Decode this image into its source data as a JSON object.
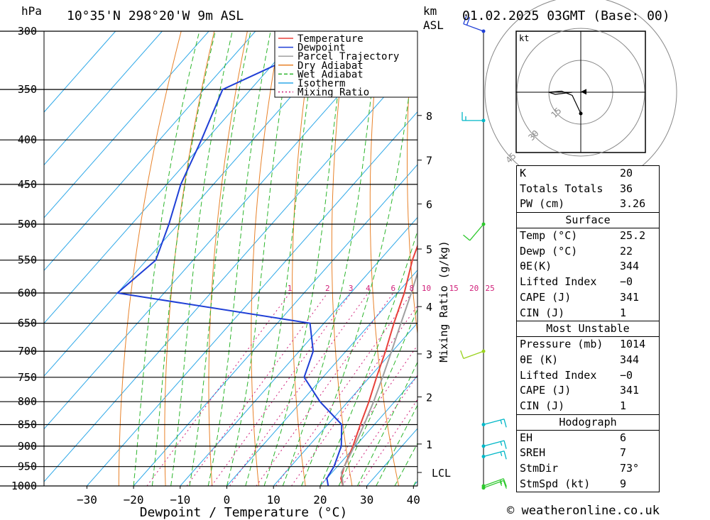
{
  "header": {
    "pressure_unit": "hPa",
    "location": "10°35'N  298°20'W  9m  ASL",
    "km_label": "km",
    "asl_label": "ASL",
    "datetime": "01.02.2025  03GMT  (Base: 00)"
  },
  "legend": {
    "items": [
      {
        "label": "Temperature",
        "color": "#e8413b",
        "style": "solid"
      },
      {
        "label": "Dewpoint",
        "color": "#1f3fd6",
        "style": "solid"
      },
      {
        "label": "Parcel Trajectory",
        "color": "#a0a0a0",
        "style": "solid"
      },
      {
        "label": "Dry Adiabat",
        "color": "#e8822a",
        "style": "solid"
      },
      {
        "label": "Wet Adiabat",
        "color": "#2cb52c",
        "style": "dashed"
      },
      {
        "label": "Isotherm",
        "color": "#2ea8e8",
        "style": "solid"
      },
      {
        "label": "Mixing Ratio",
        "color": "#d0207a",
        "style": "dotted"
      }
    ]
  },
  "chart_data": {
    "type": "line",
    "subtype": "skew-t log-p sounding",
    "xlabel": "Dewpoint / Temperature (°C)",
    "ylabel": "hPa",
    "mixing_ratio_axis_label": "Mixing Ratio (g/kg)",
    "pressure_levels": [
      300,
      350,
      400,
      450,
      500,
      550,
      600,
      650,
      700,
      750,
      800,
      850,
      900,
      950,
      1000
    ],
    "temperature_ticks": [
      -30,
      -20,
      -10,
      0,
      10,
      20,
      30,
      40
    ],
    "temperature_tick_labels": [
      "−30",
      "−20",
      "−10",
      "0",
      "10",
      "20",
      "30",
      "40"
    ],
    "mixing_ratio_values": [
      "1",
      "2",
      "3",
      "4",
      "6",
      "8",
      "10",
      "15",
      "20",
      "25"
    ],
    "mixing_ratio_label_pressure": 600,
    "altitude_km_ticks": [
      {
        "label": "8",
        "p": 375
      },
      {
        "label": "7",
        "p": 422
      },
      {
        "label": "6",
        "p": 474
      },
      {
        "label": "5",
        "p": 534
      },
      {
        "label": "4",
        "p": 622
      },
      {
        "label": "3",
        "p": 705
      },
      {
        "label": "2",
        "p": 790
      },
      {
        "label": "1",
        "p": 895
      },
      {
        "label": "LCL",
        "p": 965
      }
    ],
    "series": [
      {
        "name": "Temperature",
        "color": "#e8413b",
        "points": [
          [
            1003,
            25.2
          ],
          [
            980,
            23.0
          ],
          [
            950,
            21.5
          ],
          [
            900,
            19.5
          ],
          [
            850,
            17.0
          ],
          [
            800,
            14.5
          ],
          [
            750,
            11.5
          ],
          [
            700,
            8.5
          ],
          [
            650,
            5.0
          ],
          [
            600,
            1.5
          ],
          [
            550,
            -3.0
          ],
          [
            500,
            -7.0
          ],
          [
            450,
            -12.0
          ],
          [
            400,
            -17.5
          ],
          [
            350,
            -24.5
          ],
          [
            300,
            -33.5
          ]
        ]
      },
      {
        "name": "Dewpoint",
        "color": "#1f3fd6",
        "points": [
          [
            1003,
            22.0
          ],
          [
            980,
            20.0
          ],
          [
            950,
            19.3
          ],
          [
            900,
            17.0
          ],
          [
            850,
            13.0
          ],
          [
            800,
            4.0
          ],
          [
            750,
            -4.0
          ],
          [
            700,
            -7.0
          ],
          [
            650,
            -13.0
          ],
          [
            600,
            -60.0
          ],
          [
            550,
            -58.0
          ],
          [
            500,
            -62.0
          ],
          [
            450,
            -67.0
          ],
          [
            400,
            -71.0
          ],
          [
            350,
            -76.0
          ],
          [
            300,
            -60.0
          ]
        ]
      },
      {
        "name": "Parcel Trajectory",
        "color": "#a0a0a0",
        "points": [
          [
            1003,
            25.2
          ],
          [
            965,
            22.0
          ],
          [
            900,
            19.8
          ],
          [
            850,
            17.8
          ],
          [
            800,
            15.5
          ],
          [
            750,
            12.8
          ],
          [
            700,
            9.8
          ],
          [
            650,
            6.5
          ],
          [
            600,
            3.0
          ],
          [
            550,
            -1.0
          ],
          [
            500,
            -5.5
          ],
          [
            450,
            -10.5
          ],
          [
            400,
            -16.0
          ],
          [
            350,
            -23.0
          ],
          [
            300,
            -31.5
          ]
        ]
      }
    ],
    "wind_barbs": [
      {
        "p": 300,
        "dir": 290,
        "kt": 20,
        "color": "#1f3fd6"
      },
      {
        "p": 380,
        "dir": 270,
        "kt": 15,
        "color": "#00b7c7"
      },
      {
        "p": 500,
        "dir": 220,
        "kt": 10,
        "color": "#2cc82c"
      },
      {
        "p": 700,
        "dir": 250,
        "kt": 10,
        "color": "#9ad21e"
      },
      {
        "p": 850,
        "dir": 75,
        "kt": 15,
        "color": "#00b7c7"
      },
      {
        "p": 900,
        "dir": 75,
        "kt": 15,
        "color": "#00b7c7"
      },
      {
        "p": 925,
        "dir": 75,
        "kt": 15,
        "color": "#00b7c7"
      },
      {
        "p": 1000,
        "dir": 70,
        "kt": 15,
        "color": "#2cc82c"
      },
      {
        "p": 1005,
        "dir": 70,
        "kt": 15,
        "color": "#2cc82c"
      }
    ],
    "hodograph": {
      "unit": "kt",
      "ring_labels": [
        "15",
        "30",
        "45"
      ],
      "trace": [
        [
          0.0,
          -10.0
        ],
        [
          -4.0,
          -1.5
        ],
        [
          -9.0,
          0.5
        ],
        [
          -15.0,
          0.0
        ],
        [
          -12.0,
          -1.0
        ],
        [
          -4.0,
          0.0
        ]
      ],
      "storm_motion": [
        2.0,
        0.2
      ]
    }
  },
  "indices": {
    "general": [
      {
        "label": "K",
        "value": "20"
      },
      {
        "label": "Totals Totals",
        "value": "36"
      },
      {
        "label": "PW (cm)",
        "value": "3.26"
      }
    ],
    "surface_title": "Surface",
    "surface": [
      {
        "label": "Temp (°C)",
        "value": "25.2"
      },
      {
        "label": "Dewp (°C)",
        "value": "22"
      },
      {
        "label": "θE(K)",
        "value": "344"
      },
      {
        "label": "Lifted Index",
        "value": "−0"
      },
      {
        "label": "CAPE (J)",
        "value": "341"
      },
      {
        "label": "CIN (J)",
        "value": "1"
      }
    ],
    "most_unstable_title": "Most Unstable",
    "most_unstable": [
      {
        "label": "Pressure (mb)",
        "value": "1014"
      },
      {
        "label": "θE (K)",
        "value": "344"
      },
      {
        "label": "Lifted Index",
        "value": "−0"
      },
      {
        "label": "CAPE (J)",
        "value": "341"
      },
      {
        "label": "CIN (J)",
        "value": "1"
      }
    ],
    "hodograph_title": "Hodograph",
    "hodograph": [
      {
        "label": "EH",
        "value": "6"
      },
      {
        "label": "SREH",
        "value": "7"
      },
      {
        "label": "StmDir",
        "value": "73°"
      },
      {
        "label": "StmSpd (kt)",
        "value": "9"
      }
    ]
  },
  "footer": {
    "credit": "© weatheronline.co.uk"
  }
}
